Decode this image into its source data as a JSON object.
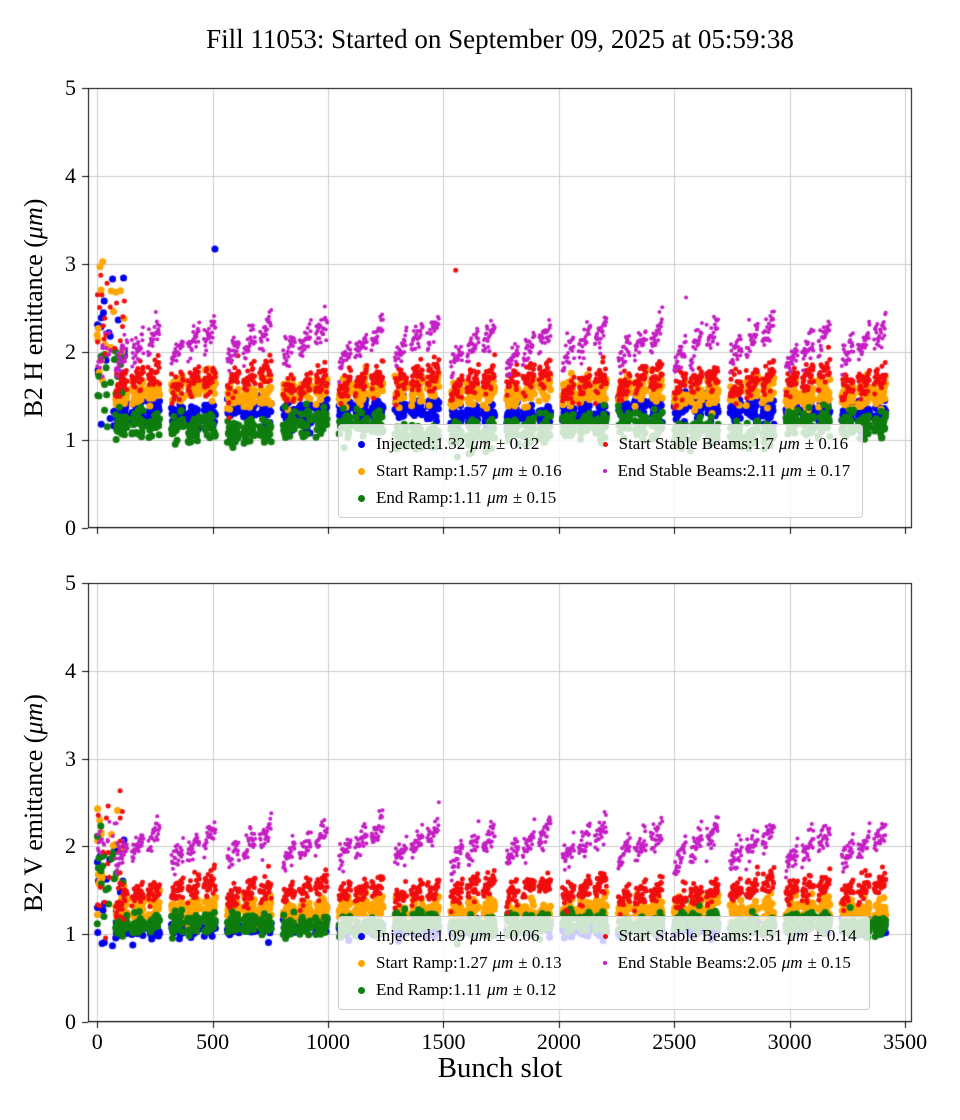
{
  "title": "Fill 11053: Started on September 09, 2025 at 05:59:38",
  "xlabel": "Bunch slot",
  "bunch_structure": {
    "first_slot": 80,
    "trains": 14,
    "train_pitch": 242,
    "batches_per_train": 3,
    "bunches_per_batch": 26,
    "slot_step": 2,
    "batch_gap": 20,
    "batch_width": 50,
    "injection_spike_x_max": 120
  },
  "chart_data": [
    {
      "type": "scatter",
      "subplot": "B2 H emittance vs bunch slot",
      "ylabel": {
        "pre": "B2 H emittance (",
        "unit": "μm",
        "post": ")"
      },
      "ylim": [
        0,
        5
      ],
      "xlim": [
        -40,
        3530
      ],
      "yticks": [
        0,
        1,
        2,
        3,
        4,
        5
      ],
      "xticks": [
        0,
        500,
        1000,
        1500,
        2000,
        2500,
        3000,
        3500
      ],
      "show_xtick_labels": false,
      "grid": true,
      "series": [
        {
          "name": "Injected",
          "color": "#0000ee",
          "marker_px": 7,
          "mean": 1.32,
          "std": 0.12,
          "noise": 0.07,
          "train_jitter": 0.05,
          "slope": 0,
          "batch_slope": 0,
          "spike_mean": 2.0,
          "spike_std": 0.45
        },
        {
          "name": "Start Ramp",
          "color": "#ffa500",
          "marker_px": 7,
          "mean": 1.55,
          "std": 0.16,
          "noise": 0.08,
          "train_jitter": 0.06,
          "slope": 0.06,
          "batch_slope": 0.03,
          "spike_mean": 2.3,
          "spike_std": 0.4
        },
        {
          "name": "End Ramp",
          "color": "#0e7d0e",
          "marker_px": 7,
          "mean": 1.1,
          "std": 0.15,
          "noise": 0.08,
          "train_jitter": 0.11,
          "slope": 0,
          "batch_slope": 0.03,
          "spike_mean": 1.75,
          "spike_std": 0.3
        },
        {
          "name": "Start Stable Beams",
          "color": "#f10e0e",
          "marker_px": 5,
          "mean": 1.68,
          "std": 0.16,
          "noise": 0.08,
          "train_jitter": 0.05,
          "slope": 0.16,
          "batch_slope": 0.08,
          "spike_mean": 2.2,
          "spike_std": 0.4
        },
        {
          "name": "End Stable Beams",
          "color": "#c41fc4",
          "marker_px": 4,
          "mean": 2.08,
          "std": 0.17,
          "noise": 0.08,
          "train_jitter": 0.05,
          "slope": 0.36,
          "batch_slope": 0.12,
          "spike_mean": 2.05,
          "spike_std": 0.15
        }
      ],
      "outliers": [
        {
          "series_index": 0,
          "x": 510,
          "y": 3.17
        },
        {
          "series_index": 3,
          "x": 1553,
          "y": 2.93
        },
        {
          "series_index": 4,
          "x": 2551,
          "y": 2.62
        }
      ],
      "legend": [
        {
          "name": "Injected:",
          "value": "1.32",
          "unit": "μm",
          "err": "± 0.12"
        },
        {
          "name": "Start Ramp:",
          "value": "1.57",
          "unit": "μm",
          "err": "± 0.16"
        },
        {
          "name": "End Ramp:",
          "value": "1.11",
          "unit": "μm",
          "err": "± 0.15"
        },
        {
          "name": "Start Stable Beams:",
          "value": "1.7",
          "unit": "μm",
          "err": "± 0.16"
        },
        {
          "name": "End Stable Beams:",
          "value": "2.11",
          "unit": "μm",
          "err": "± 0.17"
        }
      ]
    },
    {
      "type": "scatter",
      "subplot": "B2 V emittance vs bunch slot",
      "ylabel": {
        "pre": "B2 V emittance (",
        "unit": "μm",
        "post": ")"
      },
      "ylim": [
        0,
        5
      ],
      "xlim": [
        -40,
        3530
      ],
      "yticks": [
        0,
        1,
        2,
        3,
        4,
        5
      ],
      "xticks": [
        0,
        500,
        1000,
        1500,
        2000,
        2500,
        3000,
        3500
      ],
      "show_xtick_labels": true,
      "grid": true,
      "series": [
        {
          "name": "Injected",
          "color": "#0000ee",
          "marker_px": 7,
          "mean": 1.08,
          "std": 0.06,
          "noise": 0.045,
          "train_jitter": 0.03,
          "slope": 0,
          "batch_slope": 0,
          "spike_mean": 1.5,
          "spike_std": 0.35
        },
        {
          "name": "Start Ramp",
          "color": "#ffa500",
          "marker_px": 7,
          "mean": 1.26,
          "std": 0.13,
          "noise": 0.07,
          "train_jitter": 0.05,
          "slope": 0.04,
          "batch_slope": 0.03,
          "spike_mean": 1.9,
          "spike_std": 0.35
        },
        {
          "name": "End Ramp",
          "color": "#0e7d0e",
          "marker_px": 7,
          "mean": 1.11,
          "std": 0.12,
          "noise": 0.06,
          "train_jitter": 0.05,
          "slope": 0,
          "batch_slope": 0.03,
          "spike_mean": 1.6,
          "spike_std": 0.3
        },
        {
          "name": "Start Stable Beams",
          "color": "#f10e0e",
          "marker_px": 5,
          "mean": 1.5,
          "std": 0.14,
          "noise": 0.07,
          "train_jitter": 0.05,
          "slope": 0.15,
          "batch_slope": 0.06,
          "spike_mean": 1.9,
          "spike_std": 0.4
        },
        {
          "name": "End Stable Beams",
          "color": "#c41fc4",
          "marker_px": 4,
          "mean": 2.03,
          "std": 0.15,
          "noise": 0.075,
          "train_jitter": 0.05,
          "slope": 0.33,
          "batch_slope": 0.1,
          "spike_mean": 2.1,
          "spike_std": 0.15
        }
      ],
      "outliers": [],
      "legend": [
        {
          "name": "Injected:",
          "value": "1.09",
          "unit": "μm",
          "err": "± 0.06"
        },
        {
          "name": "Start Ramp:",
          "value": "1.27",
          "unit": "μm",
          "err": "± 0.13"
        },
        {
          "name": "End Ramp:",
          "value": "1.11",
          "unit": "μm",
          "err": "± 0.12"
        },
        {
          "name": "Start Stable Beams:",
          "value": "1.51",
          "unit": "μm",
          "err": "± 0.14"
        },
        {
          "name": "End Stable Beams:",
          "value": "2.05",
          "unit": "μm",
          "err": "± 0.15"
        }
      ]
    }
  ]
}
